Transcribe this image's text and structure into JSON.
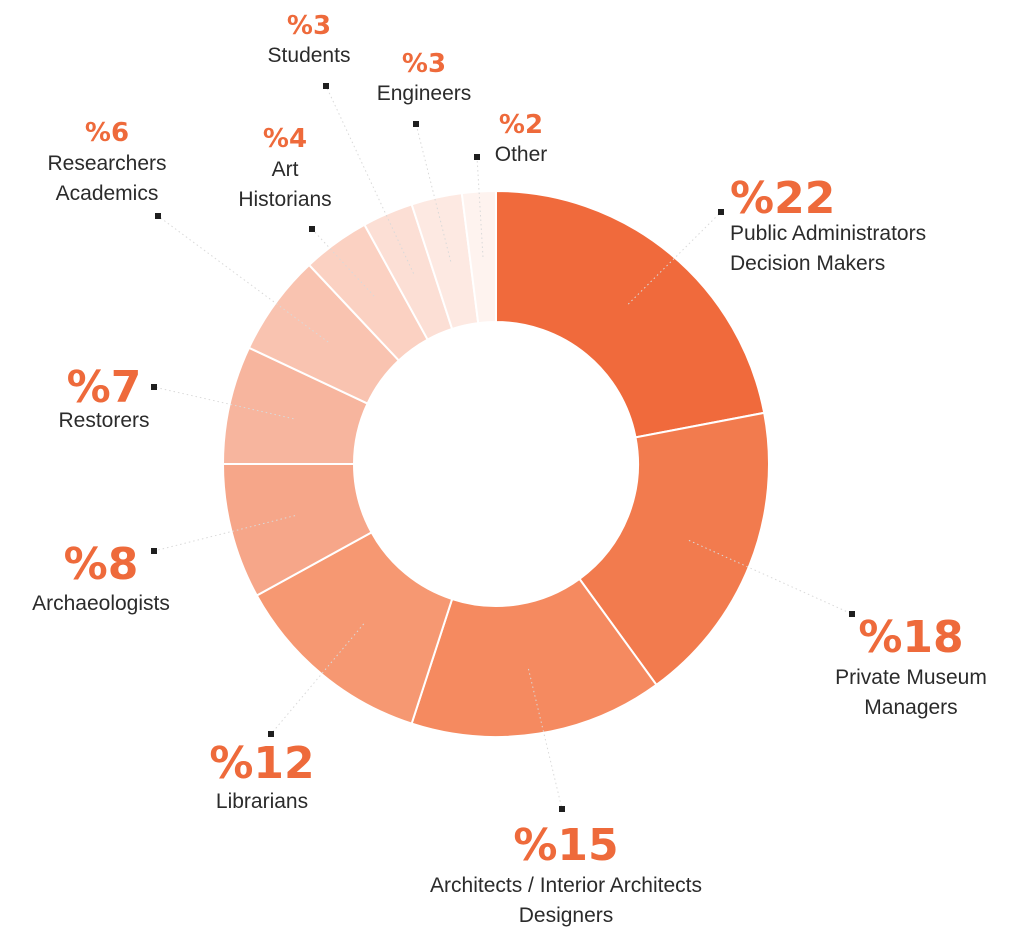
{
  "chart_data": {
    "type": "pie",
    "style": "donut",
    "categories": [
      "Public Administrators Decision Makers",
      "Private Museum Managers",
      "Architects / Interior Architects Designers",
      "Librarians",
      "Archaeologists",
      "Restorers",
      "Researchers Academics",
      "Art Historians",
      "Students",
      "Engineers",
      "Other"
    ],
    "values": [
      22,
      18,
      15,
      12,
      8,
      7,
      6,
      4,
      3,
      3,
      2
    ],
    "value_labels": [
      "%22",
      "%18",
      "%15",
      "%12",
      "%8",
      "%7",
      "%6",
      "%4",
      "%3",
      "%3",
      "%2"
    ],
    "label_lines": [
      [
        "Public Administrators",
        "Decision Makers"
      ],
      [
        "Private Museum",
        "Managers"
      ],
      [
        "Architects / Interior Architects",
        "Designers"
      ],
      [
        "Librarians"
      ],
      [
        "Archaeologists"
      ],
      [
        "Restorers"
      ],
      [
        "Researchers",
        "Academics"
      ],
      [
        "Art",
        "Historians"
      ],
      [
        "Students"
      ],
      [
        "Engineers"
      ],
      [
        "Other"
      ]
    ],
    "colors": [
      "#f06a3c",
      "#f27b4e",
      "#f58a60",
      "#f69872",
      "#f6a689",
      "#f7b59e",
      "#f9c3b0",
      "#fbd1c2",
      "#fcdfd5",
      "#fde9e2",
      "#fef3ef"
    ],
    "value_color": "#ee6a3b",
    "title": "",
    "legend": "none"
  }
}
